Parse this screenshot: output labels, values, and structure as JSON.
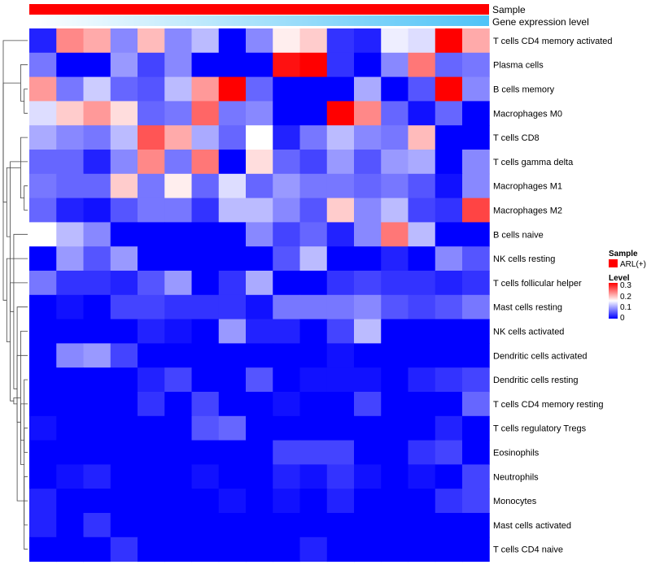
{
  "chart_data": {
    "type": "heatmap",
    "title": "",
    "annotation_tracks": [
      "Sample",
      "Gene expression level"
    ],
    "legend": {
      "sample_title": "Sample",
      "sample_entries": [
        {
          "label": "ARL(+)",
          "color": "#ff0000"
        }
      ],
      "level_title": "Level",
      "level_ticks": [
        "0.3",
        "0.2",
        "0.1",
        "0"
      ],
      "scale": [
        0,
        0.3
      ]
    },
    "rows": [
      "T cells CD4 memory activated",
      "Plasma cells",
      "B cells memory",
      "Macrophages M0",
      "T cells CD8",
      "T cells gamma delta",
      "Macrophages M1",
      "Macrophages M2",
      "B cells naive",
      "NK cells resting",
      "T cells follicular helper",
      "Mast cells resting",
      "NK cells activated",
      "Dendritic cells activated",
      "Dendritic cells resting",
      "T cells CD4 memory resting",
      "T cells regulatory  Tregs",
      "Eosinophils",
      "Neutrophils",
      "Monocytes",
      "Mast cells activated",
      "T cells CD4 naive"
    ],
    "values": [
      [
        0.02,
        0.22,
        0.2,
        0.08,
        0.19,
        0.08,
        0.11,
        0.0,
        0.08,
        0.16,
        0.18,
        0.03,
        0.02,
        0.14,
        0.13,
        0.3,
        0.2
      ],
      [
        0.07,
        0.0,
        0.0,
        0.09,
        0.04,
        0.08,
        0.0,
        0.0,
        0.0,
        0.29,
        0.3,
        0.03,
        0.0,
        0.08,
        0.23,
        0.06,
        0.07
      ],
      [
        0.21,
        0.07,
        0.12,
        0.06,
        0.05,
        0.11,
        0.21,
        0.3,
        0.06,
        0.0,
        0.0,
        0.0,
        0.1,
        0.0,
        0.05,
        0.3,
        0.08
      ],
      [
        0.13,
        0.18,
        0.21,
        0.17,
        0.06,
        0.07,
        0.24,
        0.07,
        0.08,
        0.0,
        0.0,
        0.3,
        0.22,
        0.06,
        0.01,
        0.06,
        0.0
      ],
      [
        0.1,
        0.08,
        0.07,
        0.11,
        0.25,
        0.2,
        0.1,
        0.06,
        0.15,
        0.02,
        0.07,
        0.11,
        0.08,
        0.07,
        0.19,
        0.0,
        0.0
      ],
      [
        0.06,
        0.06,
        0.02,
        0.08,
        0.22,
        0.07,
        0.23,
        0.0,
        0.17,
        0.06,
        0.04,
        0.09,
        0.05,
        0.09,
        0.1,
        0.0,
        0.08
      ],
      [
        0.07,
        0.06,
        0.06,
        0.18,
        0.07,
        0.16,
        0.06,
        0.13,
        0.06,
        0.09,
        0.07,
        0.07,
        0.06,
        0.07,
        0.05,
        0.01,
        0.08
      ],
      [
        0.06,
        0.02,
        0.01,
        0.05,
        0.07,
        0.07,
        0.03,
        0.11,
        0.11,
        0.08,
        0.05,
        0.18,
        0.08,
        0.11,
        0.04,
        0.03,
        0.26
      ],
      [
        0.15,
        0.11,
        0.08,
        0.0,
        0.0,
        0.0,
        0.0,
        0.0,
        0.08,
        0.04,
        0.06,
        0.02,
        0.08,
        0.23,
        0.11,
        0.0,
        0.0
      ],
      [
        0.0,
        0.09,
        0.05,
        0.09,
        0.0,
        0.0,
        0.0,
        0.0,
        0.0,
        0.05,
        0.11,
        0.0,
        0.0,
        0.02,
        0.0,
        0.08,
        0.05
      ],
      [
        0.07,
        0.03,
        0.03,
        0.02,
        0.05,
        0.09,
        0.0,
        0.03,
        0.1,
        0.0,
        0.0,
        0.03,
        0.04,
        0.03,
        0.03,
        0.02,
        0.03
      ],
      [
        0.0,
        0.01,
        0.0,
        0.04,
        0.04,
        0.03,
        0.03,
        0.03,
        0.01,
        0.07,
        0.07,
        0.07,
        0.08,
        0.05,
        0.04,
        0.05,
        0.07
      ],
      [
        0.0,
        0.0,
        0.0,
        0.0,
        0.02,
        0.01,
        0.0,
        0.09,
        0.02,
        0.02,
        0.0,
        0.04,
        0.11,
        0.0,
        0.0,
        0.0,
        0.0
      ],
      [
        0.0,
        0.08,
        0.09,
        0.04,
        0.0,
        0.0,
        0.0,
        0.0,
        0.0,
        0.0,
        0.0,
        0.01,
        0.0,
        0.0,
        0.0,
        0.0,
        0.0
      ],
      [
        0.0,
        0.0,
        0.0,
        0.0,
        0.02,
        0.04,
        0.0,
        0.0,
        0.05,
        0.0,
        0.01,
        0.01,
        0.01,
        0.0,
        0.02,
        0.03,
        0.04
      ],
      [
        0.0,
        0.0,
        0.0,
        0.0,
        0.03,
        0.0,
        0.04,
        0.0,
        0.0,
        0.01,
        0.0,
        0.0,
        0.04,
        0.0,
        0.0,
        0.0,
        0.06
      ],
      [
        0.01,
        0.0,
        0.0,
        0.0,
        0.0,
        0.0,
        0.05,
        0.06,
        0.0,
        0.0,
        0.0,
        0.0,
        0.0,
        0.0,
        0.0,
        0.02,
        0.0
      ],
      [
        0.0,
        0.0,
        0.0,
        0.0,
        0.0,
        0.0,
        0.0,
        0.0,
        0.0,
        0.04,
        0.04,
        0.04,
        0.0,
        0.0,
        0.03,
        0.04,
        0.0
      ],
      [
        0.0,
        0.01,
        0.02,
        0.0,
        0.0,
        0.0,
        0.01,
        0.0,
        0.0,
        0.02,
        0.01,
        0.03,
        0.01,
        0.0,
        0.01,
        0.0,
        0.04
      ],
      [
        0.02,
        0.0,
        0.0,
        0.0,
        0.0,
        0.0,
        0.0,
        0.01,
        0.0,
        0.01,
        0.0,
        0.02,
        0.0,
        0.0,
        0.0,
        0.03,
        0.04
      ],
      [
        0.02,
        0.0,
        0.03,
        0.0,
        0.0,
        0.0,
        0.0,
        0.0,
        0.0,
        0.0,
        0.0,
        0.0,
        0.0,
        0.0,
        0.0,
        0.0,
        0.0
      ],
      [
        0.0,
        0.0,
        0.0,
        0.03,
        0.0,
        0.0,
        0.0,
        0.0,
        0.0,
        0.0,
        0.02,
        0.0,
        0.0,
        0.0,
        0.0,
        0.0,
        0.0
      ]
    ],
    "dendrogram": [
      [
        19,
        21
      ],
      [
        22,
        15
      ],
      [
        20,
        23
      ],
      [
        24,
        13
      ],
      [
        12,
        25
      ],
      [
        18,
        17
      ],
      [
        26,
        27
      ],
      [
        28,
        16
      ],
      [
        11,
        29
      ],
      [
        14,
        30
      ],
      [
        10,
        31
      ],
      [
        9,
        32
      ],
      [
        7,
        8
      ],
      [
        6,
        34
      ],
      [
        5,
        35
      ],
      [
        3,
        4
      ],
      [
        37,
        36
      ],
      [
        2,
        38
      ],
      [
        1,
        39
      ],
      [
        40,
        33
      ]
    ]
  },
  "colors": {
    "low": "#0000ff",
    "mid": "#ffffff",
    "high": "#ff0000",
    "sample_bar": "#ff0000",
    "expr_bar_start": "#ffffff",
    "expr_bar_end": "#4fc3f7"
  }
}
